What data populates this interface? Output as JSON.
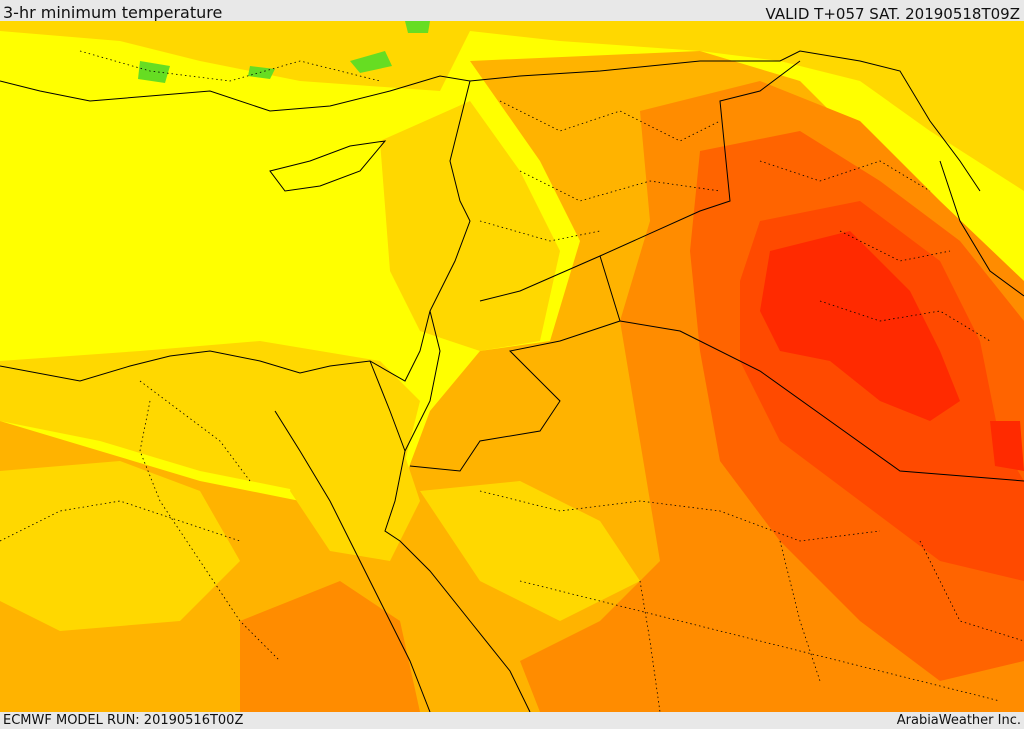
{
  "header": {
    "title": "3-hr minimum temperature",
    "valid": "VALID T+057 SAT. 20190518T09Z"
  },
  "footer": {
    "model_run": "ECMWF MODEL RUN: 20190516T00Z",
    "credit": "ArabiaWeather Inc."
  },
  "colors": {
    "land_yellow": "#ffff00",
    "gold": "#ffd800",
    "orange_light": "#ffb300",
    "orange": "#ff8c00",
    "orange_dark": "#ff6400",
    "red_orange": "#ff4a00",
    "red": "#ff2a00",
    "green": "#66dd22",
    "border": "#000000"
  }
}
